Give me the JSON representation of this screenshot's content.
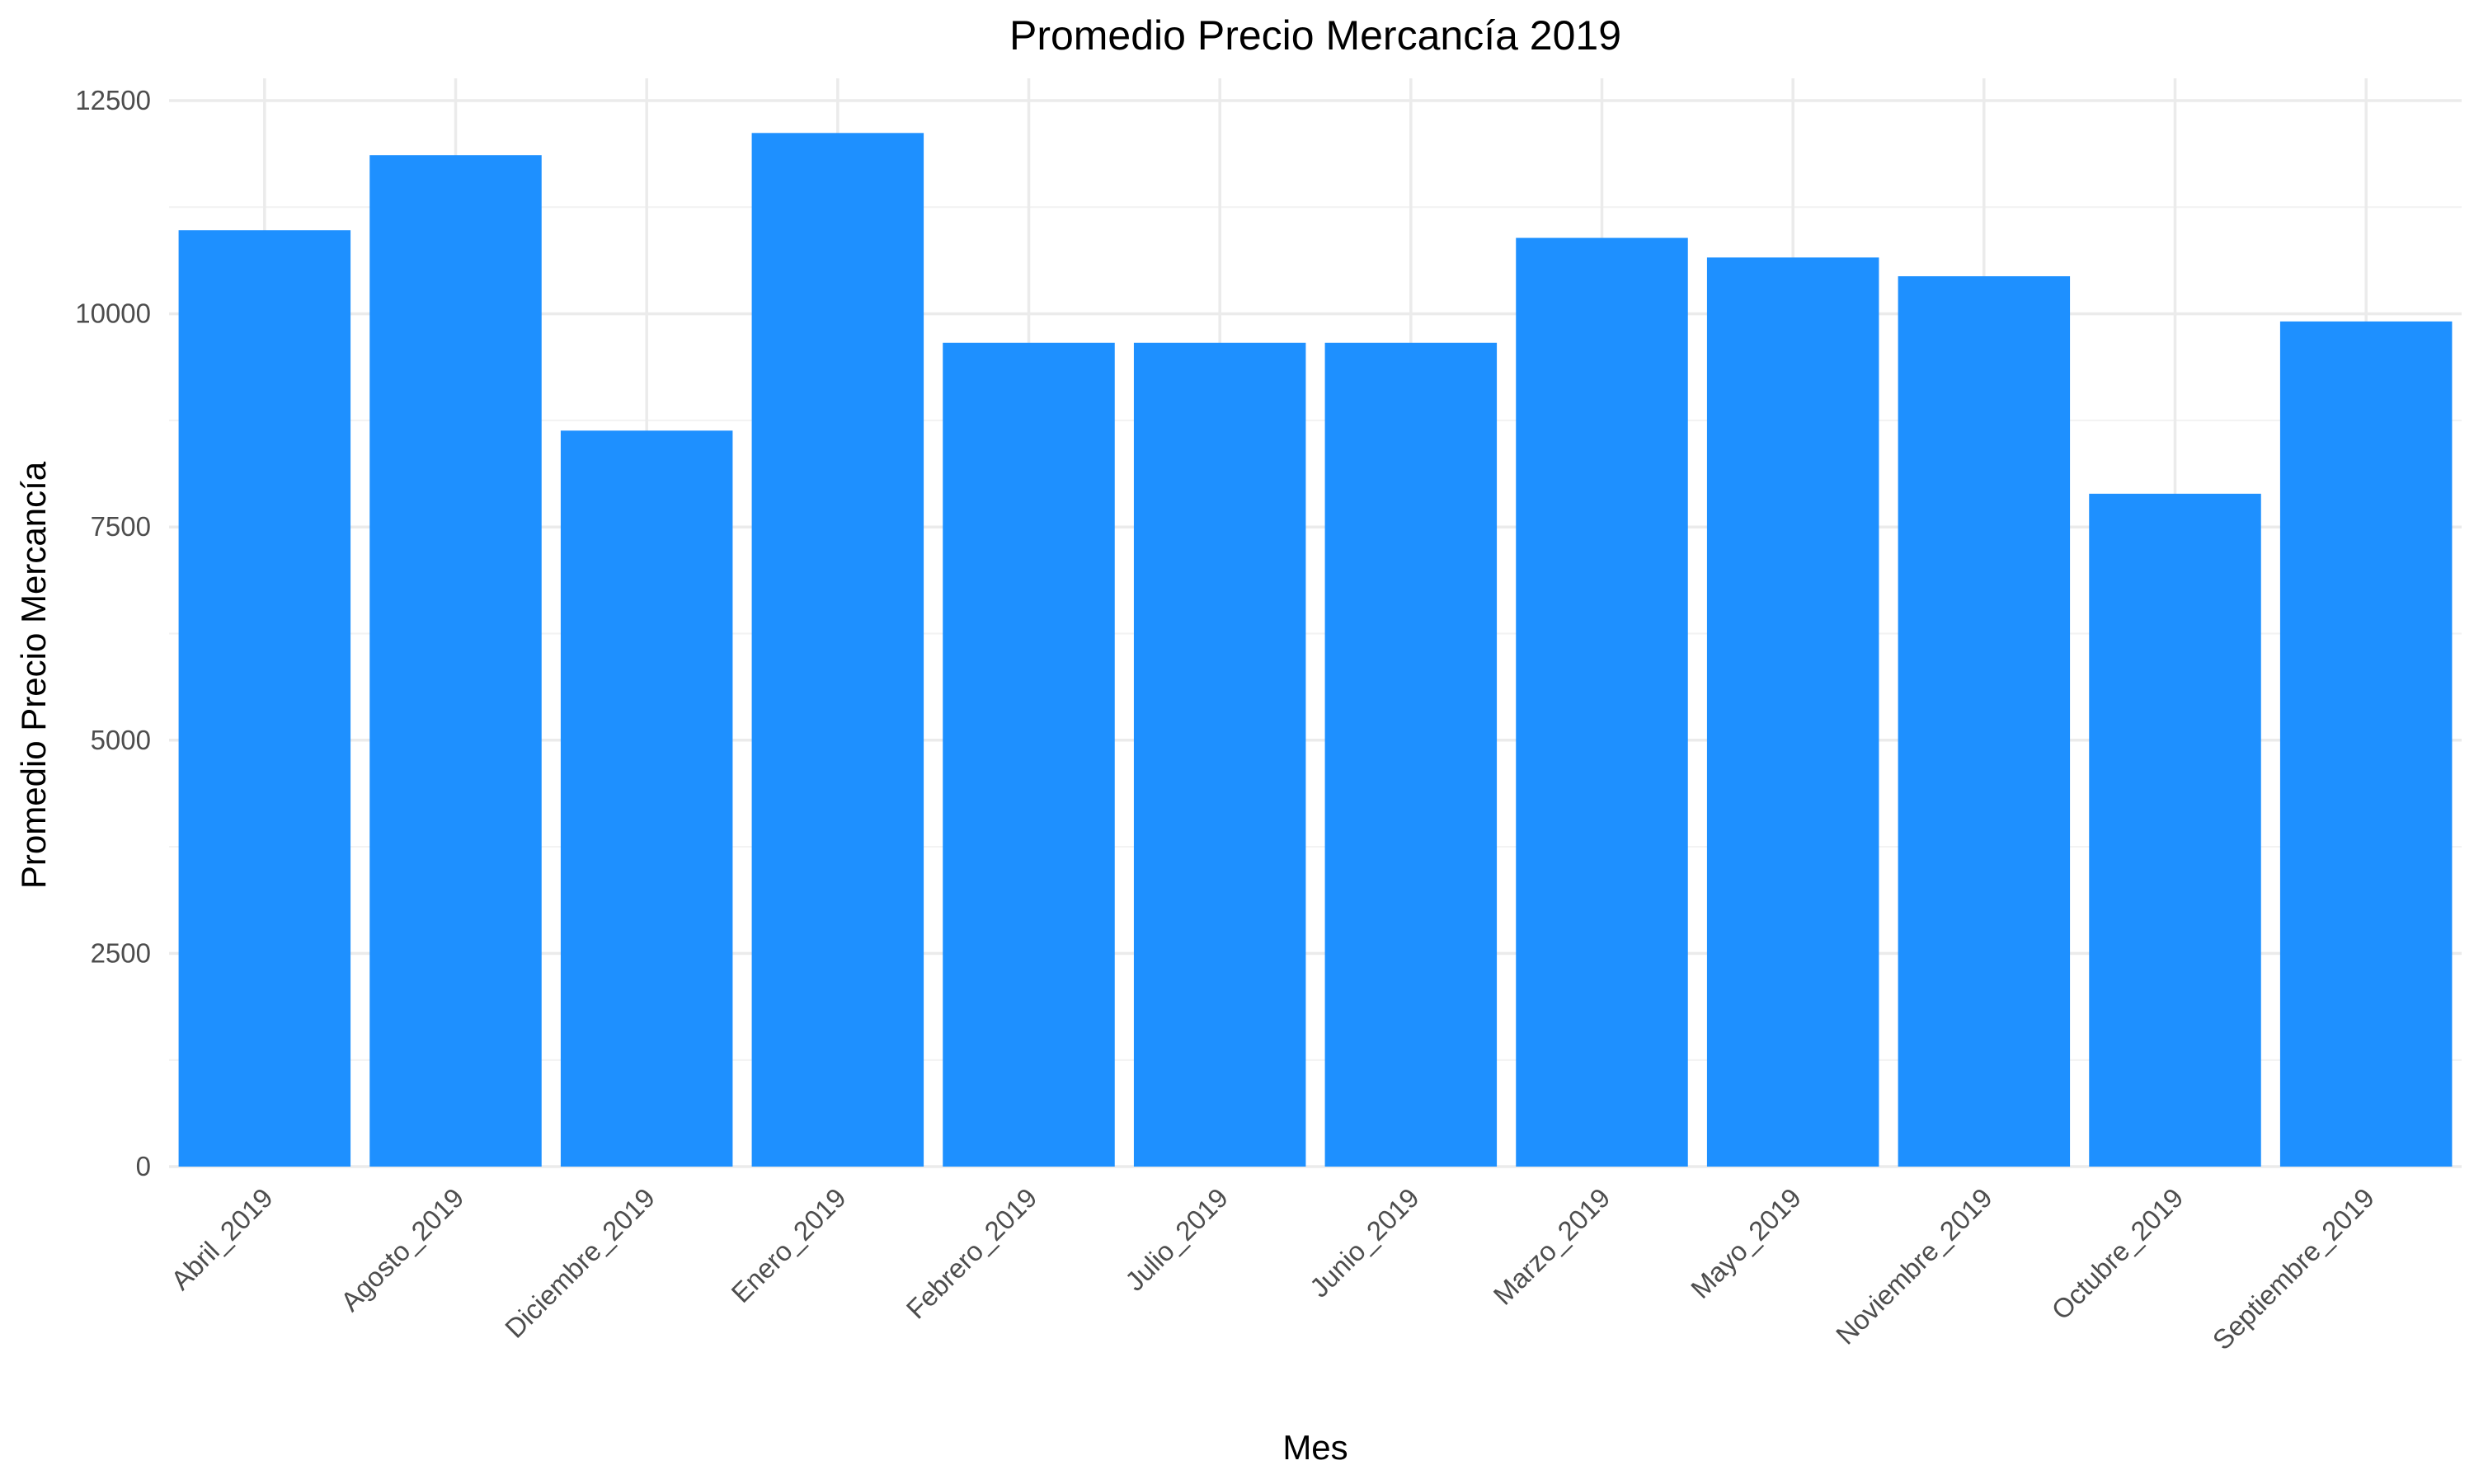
{
  "chart_data": {
    "type": "bar",
    "title": "Promedio Precio Mercancía 2019",
    "xlabel": "Mes",
    "ylabel": "Promedio Precio Mercancía",
    "categories": [
      "Abril_2019",
      "Agosto_2019",
      "Diciembre_2019",
      "Enero_2019",
      "Febrero_2019",
      "Julio_2019",
      "Junio_2019",
      "Marzo_2019",
      "Mayo_2019",
      "Noviembre_2019",
      "Octubre_2019",
      "Septiembre_2019"
    ],
    "values": [
      10980,
      11860,
      8630,
      12120,
      9660,
      9660,
      9660,
      10890,
      10660,
      10440,
      7890,
      9910
    ],
    "ylim": [
      0,
      12500
    ],
    "yticks": [
      0,
      2500,
      5000,
      7500,
      10000,
      12500
    ],
    "ytick_labels": [
      "0",
      "2500",
      "5000",
      "7500",
      "10000",
      "12500"
    ],
    "grid": true,
    "bar_color": "#1E90FF",
    "legend": "none"
  }
}
